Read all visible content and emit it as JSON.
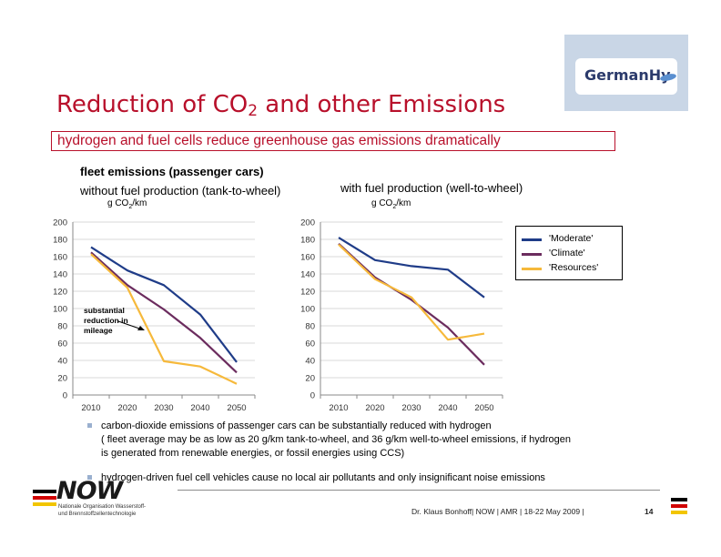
{
  "logo": {
    "text": "GermanHy"
  },
  "title": {
    "main": "Reduction of CO",
    "sub": "2",
    "rest": " and other Emissions"
  },
  "subtitle": "hydrogen and fuel cells reduce greenhouse gas emissions dramatically",
  "labels": {
    "fleet": "fleet emissions (passenger cars)",
    "left_heading": "without fuel production (tank-to-wheel)",
    "right_heading": "with fuel production (well-to-wheel)",
    "unit_main": "g CO",
    "unit_sub": "2",
    "unit_rest": "/km"
  },
  "annotation": {
    "line1": "substantial",
    "line2": "reduction in",
    "line3": "mileage"
  },
  "colors": {
    "moderate": "#1f3c88",
    "climate": "#6b2c5e",
    "resources": "#f6b93b",
    "title": "#b8102b"
  },
  "chart_data": [
    {
      "type": "line",
      "title": "without fuel production (tank-to-wheel)",
      "ylabel": "g CO2/km",
      "x": [
        2010,
        2020,
        2030,
        2040,
        2050
      ],
      "ylim": [
        0,
        200
      ],
      "yticks": [
        0,
        20,
        40,
        60,
        80,
        100,
        120,
        140,
        160,
        180,
        200
      ],
      "grid": true,
      "series": [
        {
          "name": "'Moderate'",
          "values": [
            171,
            144,
            127,
            93,
            38
          ]
        },
        {
          "name": "'Climate'",
          "values": [
            165,
            127,
            99,
            66,
            26
          ]
        },
        {
          "name": "'Resources'",
          "values": [
            163,
            124,
            39,
            33,
            13
          ]
        }
      ]
    },
    {
      "type": "line",
      "title": "with fuel production (well-to-wheel)",
      "ylabel": "g CO2/km",
      "x": [
        2010,
        2020,
        2030,
        2040,
        2050
      ],
      "ylim": [
        0,
        200
      ],
      "yticks": [
        0,
        20,
        40,
        60,
        80,
        100,
        120,
        140,
        160,
        180,
        200
      ],
      "grid": true,
      "series": [
        {
          "name": "'Moderate'",
          "values": [
            182,
            156,
            149,
            145,
            113
          ]
        },
        {
          "name": "'Climate'",
          "values": [
            175,
            136,
            110,
            78,
            35
          ]
        },
        {
          "name": "'Resources'",
          "values": [
            174,
            134,
            113,
            64,
            71
          ]
        }
      ]
    }
  ],
  "legend": [
    "'Moderate'",
    "'Climate'",
    "'Resources'"
  ],
  "bullets": [
    {
      "line1": "carbon-dioxide emissions of passenger cars can be substantially reduced with hydrogen",
      "line2": "( fleet average may be as low as 20 g/km tank-to-wheel, and 36 g/km well-to-wheel emissions, if hydrogen",
      "line3": "is generated from renewable energies, or fossil energies using CCS)"
    },
    {
      "line1": "hydrogen-driven fuel cell vehicles cause no local air pollutants and only insignificant noise emissions"
    }
  ],
  "footer": {
    "org_logo": "NOW",
    "org_line1": "Nationale Organisation Wasserstoff-",
    "org_line2": "und Brennstoffzellentechnologie",
    "text": "Dr. Klaus Bonhoff| NOW  | AMR |  18-22 May 2009 |",
    "page": "14"
  }
}
